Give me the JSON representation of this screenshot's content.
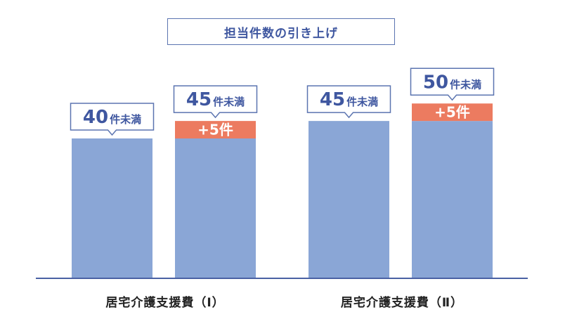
{
  "title": "担当件数の引き上げ",
  "colors": {
    "base": "#8aa6d6",
    "increase": "#ec7b60",
    "axis": "#4a61a4",
    "callout_text": "#3f57a0",
    "callout_border": "#5b74b0"
  },
  "chart_data": {
    "type": "bar",
    "stacked": true,
    "title": "担当件数の引き上げ",
    "categories": [
      "居宅介護支援費（Ⅰ）",
      "居宅介護支援費（Ⅱ）"
    ],
    "bars": [
      {
        "group": "居宅介護支援費（Ⅰ）",
        "base": 40,
        "increase": 0,
        "callout_num": "40",
        "callout_unit": "件未満",
        "increase_label": ""
      },
      {
        "group": "居宅介護支援費（Ⅰ）",
        "base": 40,
        "increase": 5,
        "callout_num": "45",
        "callout_unit": "件未満",
        "increase_label": "+5件"
      },
      {
        "group": "居宅介護支援費（Ⅱ）",
        "base": 45,
        "increase": 0,
        "callout_num": "45",
        "callout_unit": "件未満",
        "increase_label": ""
      },
      {
        "group": "居宅介護支援費（Ⅱ）",
        "base": 45,
        "increase": 5,
        "callout_num": "50",
        "callout_unit": "件未満",
        "increase_label": "+5件"
      }
    ],
    "ylim": [
      0,
      60
    ],
    "grid": false,
    "legend": "none"
  }
}
